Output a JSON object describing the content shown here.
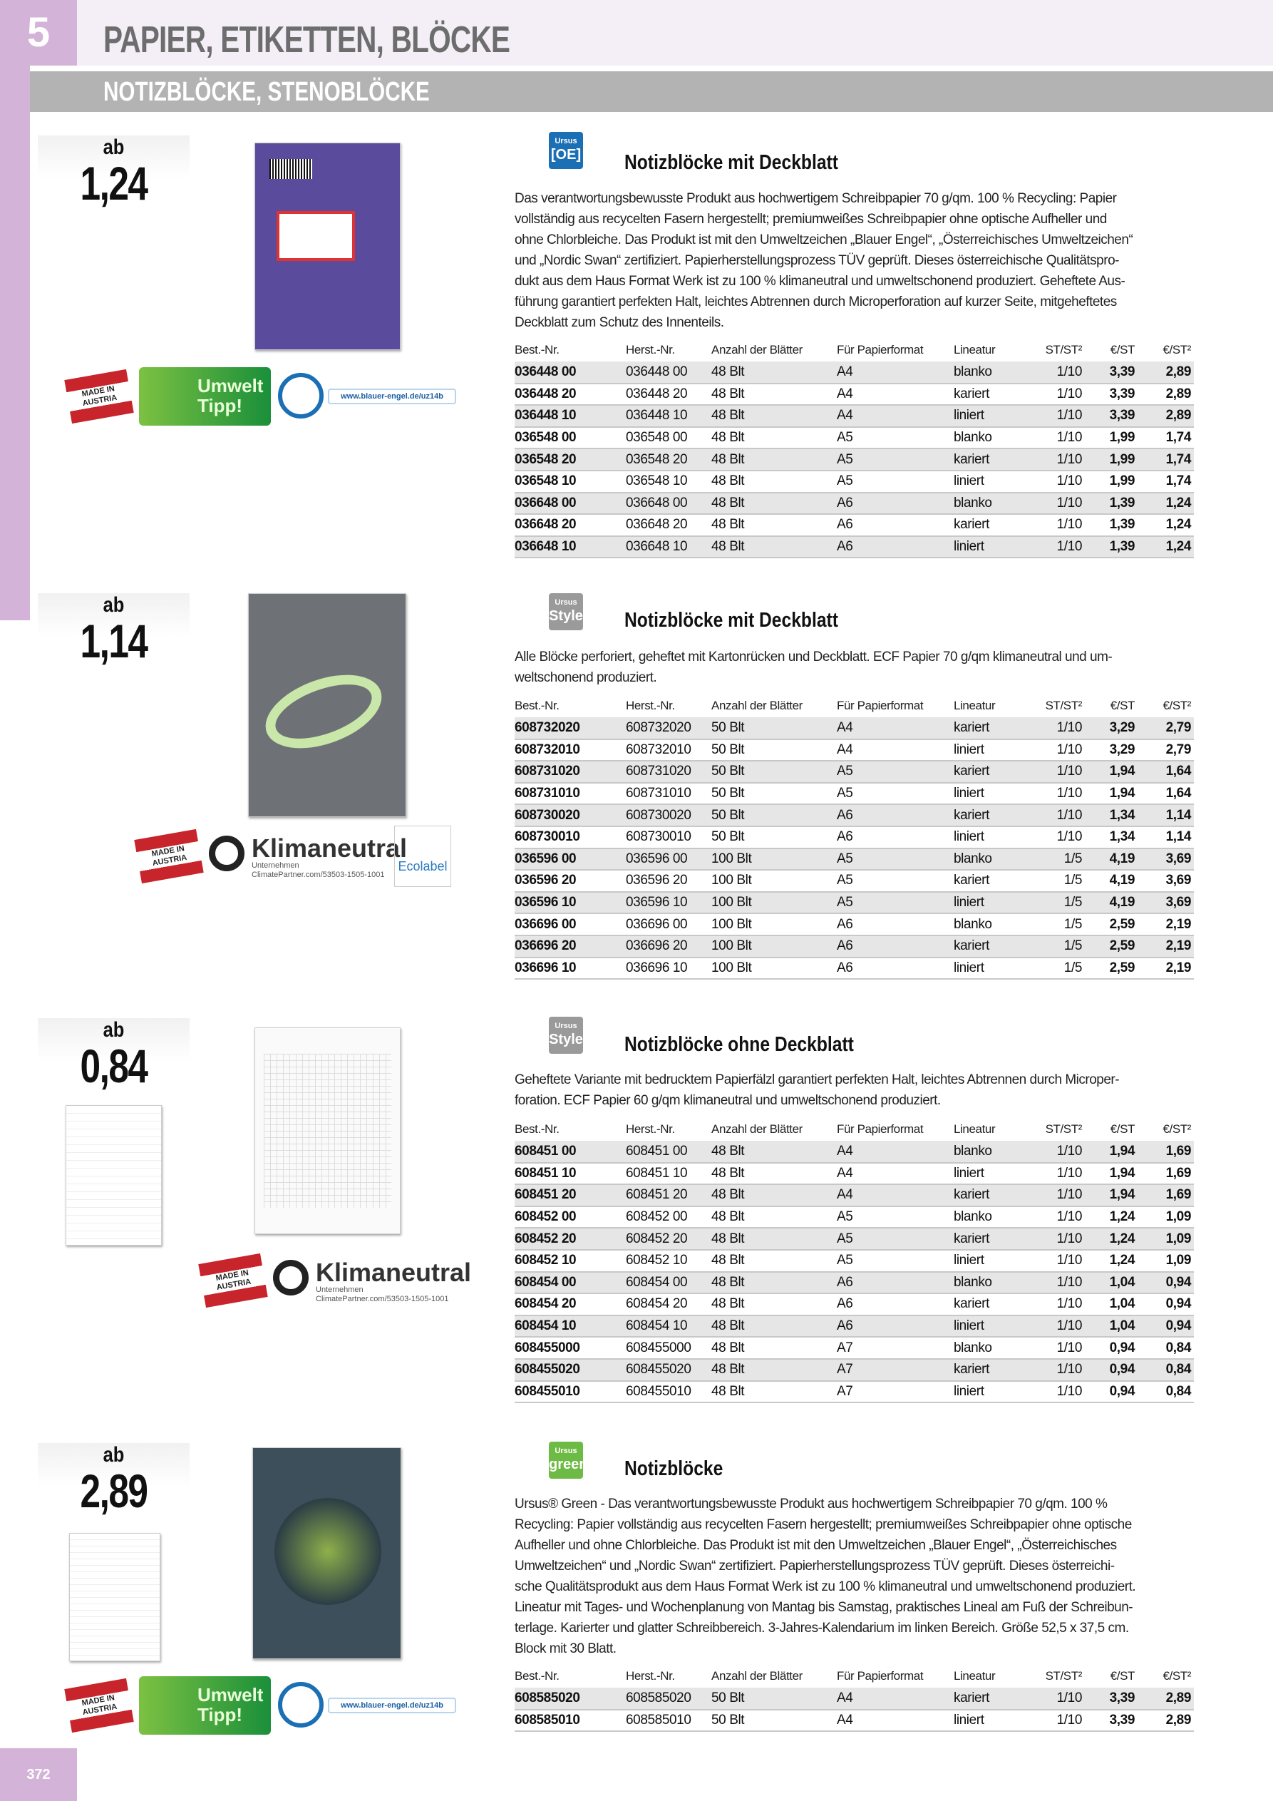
{
  "header": {
    "chapter": "5",
    "title": "PAPIER, ETIKETTEN, BLÖCKE",
    "subtitle": "NOTIZBLÖCKE, STENOBLÖCKE"
  },
  "page_number": "372",
  "columns": [
    "Best.-Nr.",
    "Herst.-Nr.",
    "Anzahl der Blätter",
    "Für Papierformat",
    "Lineatur",
    "ST/ST²",
    "€/ST",
    "€/ST²"
  ],
  "badges": {
    "made_in_austria": "MADE IN AUSTRIA",
    "umwelt": "Umwelt Tipp!",
    "blauer_engel_url": "www.blauer-engel.de/uz14b",
    "klimaneutral": "Klimaneutral",
    "klima_sub": "Unternehmen",
    "klima_id": "ClimatePartner.com/53503-1505-1001",
    "ecolabel": "Ecolabel"
  },
  "colors": {
    "accent": "#d4b3d8",
    "subbar": "#b3b3b3",
    "title_gray": "#6d6d6d"
  },
  "products": [
    {
      "ab": "ab",
      "price": "1,24",
      "brand": {
        "top": "Ursus",
        "name": "[OE]",
        "color": "#1b6fb5"
      },
      "title": "Notizblöcke mit Deckblatt",
      "desc": [
        "Das verantwortungsbewusste Produkt aus hochwertigem Schreibpapier 70 g/qm. 100 % Recycling: Papier",
        "vollständig aus recycelten Fasern hergestellt; premiumweißes Schreibpapier ohne optische Aufheller und",
        "ohne Chlorbleiche. Das Produkt ist mit den Umweltzeichen „Blauer Engel“, „Österreichisches Umweltzeichen“",
        "und „Nordic Swan“ zertifiziert. Papierherstellungsprozess TÜV geprüft. Dieses österreichische Qualitätspro-",
        "dukt aus dem Haus Format Werk ist zu 100 % klimaneutral und umweltschonend produziert. Geheftete Aus-",
        "führung garantiert perfekten Halt, leichtes Abtrennen durch Microperforation auf kurzer Seite, mitgeheftetes",
        "Deckblatt zum Schutz des Innenteils."
      ],
      "rows": [
        [
          "036448 00",
          "036448 00",
          "48 Blt",
          "A4",
          "blanko",
          "1/10",
          "3,39",
          "2,89"
        ],
        [
          "036448 20",
          "036448 20",
          "48 Blt",
          "A4",
          "kariert",
          "1/10",
          "3,39",
          "2,89"
        ],
        [
          "036448 10",
          "036448 10",
          "48 Blt",
          "A4",
          "liniert",
          "1/10",
          "3,39",
          "2,89"
        ],
        [
          "036548 00",
          "036548 00",
          "48 Blt",
          "A5",
          "blanko",
          "1/10",
          "1,99",
          "1,74"
        ],
        [
          "036548 20",
          "036548 20",
          "48 Blt",
          "A5",
          "kariert",
          "1/10",
          "1,99",
          "1,74"
        ],
        [
          "036548 10",
          "036548 10",
          "48 Blt",
          "A5",
          "liniert",
          "1/10",
          "1,99",
          "1,74"
        ],
        [
          "036648 00",
          "036648 00",
          "48 Blt",
          "A6",
          "blanko",
          "1/10",
          "1,39",
          "1,24"
        ],
        [
          "036648 20",
          "036648 20",
          "48 Blt",
          "A6",
          "kariert",
          "1/10",
          "1,39",
          "1,24"
        ],
        [
          "036648 10",
          "036648 10",
          "48 Blt",
          "A6",
          "liniert",
          "1/10",
          "1,39",
          "1,24"
        ]
      ]
    },
    {
      "ab": "ab",
      "price": "1,14",
      "brand": {
        "top": "Ursus",
        "name": "Style",
        "color": "#9a9a9a"
      },
      "title": "Notizblöcke mit Deckblatt",
      "desc": [
        "Alle Blöcke perforiert, geheftet mit Kartonrücken und Deckblatt. ECF Papier 70 g/qm klimaneutral und um-",
        "weltschonend produziert."
      ],
      "rows": [
        [
          "608732020",
          "608732020",
          "50 Blt",
          "A4",
          "kariert",
          "1/10",
          "3,29",
          "2,79"
        ],
        [
          "608732010",
          "608732010",
          "50 Blt",
          "A4",
          "liniert",
          "1/10",
          "3,29",
          "2,79"
        ],
        [
          "608731020",
          "608731020",
          "50 Blt",
          "A5",
          "kariert",
          "1/10",
          "1,94",
          "1,64"
        ],
        [
          "608731010",
          "608731010",
          "50 Blt",
          "A5",
          "liniert",
          "1/10",
          "1,94",
          "1,64"
        ],
        [
          "608730020",
          "608730020",
          "50 Blt",
          "A6",
          "kariert",
          "1/10",
          "1,34",
          "1,14"
        ],
        [
          "608730010",
          "608730010",
          "50 Blt",
          "A6",
          "liniert",
          "1/10",
          "1,34",
          "1,14"
        ],
        [
          "036596 00",
          "036596 00",
          "100 Blt",
          "A5",
          "blanko",
          "1/5",
          "4,19",
          "3,69"
        ],
        [
          "036596 20",
          "036596 20",
          "100 Blt",
          "A5",
          "kariert",
          "1/5",
          "4,19",
          "3,69"
        ],
        [
          "036596 10",
          "036596 10",
          "100 Blt",
          "A5",
          "liniert",
          "1/5",
          "4,19",
          "3,69"
        ],
        [
          "036696 00",
          "036696 00",
          "100 Blt",
          "A6",
          "blanko",
          "1/5",
          "2,59",
          "2,19"
        ],
        [
          "036696 20",
          "036696 20",
          "100 Blt",
          "A6",
          "kariert",
          "1/5",
          "2,59",
          "2,19"
        ],
        [
          "036696 10",
          "036696 10",
          "100 Blt",
          "A6",
          "liniert",
          "1/5",
          "2,59",
          "2,19"
        ]
      ]
    },
    {
      "ab": "ab",
      "price": "0,84",
      "brand": {
        "top": "Ursus",
        "name": "Style",
        "color": "#9a9a9a"
      },
      "title": "Notizblöcke ohne Deckblatt",
      "desc": [
        "Geheftete Variante mit bedrucktem Papierfälzl garantiert perfekten Halt, leichtes Abtrennen durch Microper-",
        "foration. ECF Papier 60 g/qm klimaneutral und umweltschonend produziert."
      ],
      "rows": [
        [
          "608451 00",
          "608451 00",
          "48 Blt",
          "A4",
          "blanko",
          "1/10",
          "1,94",
          "1,69"
        ],
        [
          "608451 10",
          "608451 10",
          "48 Blt",
          "A4",
          "liniert",
          "1/10",
          "1,94",
          "1,69"
        ],
        [
          "608451 20",
          "608451 20",
          "48 Blt",
          "A4",
          "kariert",
          "1/10",
          "1,94",
          "1,69"
        ],
        [
          "608452 00",
          "608452 00",
          "48 Blt",
          "A5",
          "blanko",
          "1/10",
          "1,24",
          "1,09"
        ],
        [
          "608452 20",
          "608452 20",
          "48 Blt",
          "A5",
          "kariert",
          "1/10",
          "1,24",
          "1,09"
        ],
        [
          "608452 10",
          "608452 10",
          "48 Blt",
          "A5",
          "liniert",
          "1/10",
          "1,24",
          "1,09"
        ],
        [
          "608454 00",
          "608454 00",
          "48 Blt",
          "A6",
          "blanko",
          "1/10",
          "1,04",
          "0,94"
        ],
        [
          "608454 20",
          "608454 20",
          "48 Blt",
          "A6",
          "kariert",
          "1/10",
          "1,04",
          "0,94"
        ],
        [
          "608454 10",
          "608454 10",
          "48 Blt",
          "A6",
          "liniert",
          "1/10",
          "1,04",
          "0,94"
        ],
        [
          "608455000",
          "608455000",
          "48 Blt",
          "A7",
          "blanko",
          "1/10",
          "0,94",
          "0,84"
        ],
        [
          "608455020",
          "608455020",
          "48 Blt",
          "A7",
          "kariert",
          "1/10",
          "0,94",
          "0,84"
        ],
        [
          "608455010",
          "608455010",
          "48 Blt",
          "A7",
          "liniert",
          "1/10",
          "0,94",
          "0,84"
        ]
      ]
    },
    {
      "ab": "ab",
      "price": "2,89",
      "brand": {
        "top": "Ursus",
        "name": "green",
        "color": "#6dbb45"
      },
      "title": "Notizblöcke",
      "desc": [
        "Ursus® Green - Das verantwortungsbewusste Produkt aus hochwertigem Schreibpapier 70 g/qm. 100 %",
        "Recycling: Papier vollständig aus recycelten Fasern hergestellt; premiumweißes Schreibpapier ohne optische",
        "Aufheller und ohne Chlorbleiche. Das Produkt ist mit den Umweltzeichen „Blauer Engel“, „Österreichisches",
        "Umweltzeichen“ und „Nordic Swan“ zertifiziert. Papierherstellungsprozess TÜV geprüft. Dieses österreichi-",
        "sche Qualitätsprodukt aus dem Haus Format Werk ist zu 100 % klimaneutral und umweltschonend produziert.",
        "Lineatur mit Tages- und Wochenplanung von Mantag bis Samstag, praktisches Lineal am Fuß der Schreibun-",
        "terlage. Karierter und glatter Schreibbereich. 3-Jahres-Kalendarium im linken Bereich. Größe 52,5 x 37,5 cm.",
        "Block mit 30 Blatt."
      ],
      "rows": [
        [
          "608585020",
          "608585020",
          "50 Blt",
          "A4",
          "kariert",
          "1/10",
          "3,39",
          "2,89"
        ],
        [
          "608585010",
          "608585010",
          "50 Blt",
          "A4",
          "liniert",
          "1/10",
          "3,39",
          "2,89"
        ]
      ]
    }
  ]
}
